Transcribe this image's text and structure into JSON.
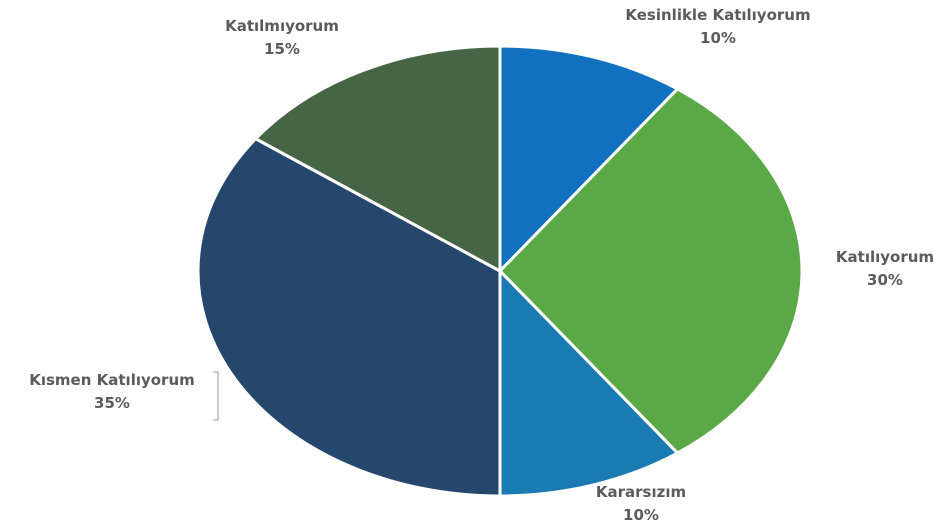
{
  "chart_data": {
    "type": "pie",
    "title": "",
    "slices": [
      {
        "label": "Kesinlikle Katılıyorum",
        "value": 10,
        "percent_label": "10%",
        "color": "#1170bf"
      },
      {
        "label": "Katılıyorum",
        "value": 30,
        "percent_label": "30%",
        "color": "#5aa846"
      },
      {
        "label": "Kararsızım",
        "value": 10,
        "percent_label": "10%",
        "color": "#1a7ab2"
      },
      {
        "label": "Kısmen Katılıyorum",
        "value": 35,
        "percent_label": "35%",
        "color": "#25476e"
      },
      {
        "label": "Katılmıyorum",
        "value": 15,
        "percent_label": "15%",
        "color": "#466545"
      }
    ],
    "label_color": "#5b5b5b",
    "start_angle_deg": 0,
    "direction": "clockwise"
  }
}
